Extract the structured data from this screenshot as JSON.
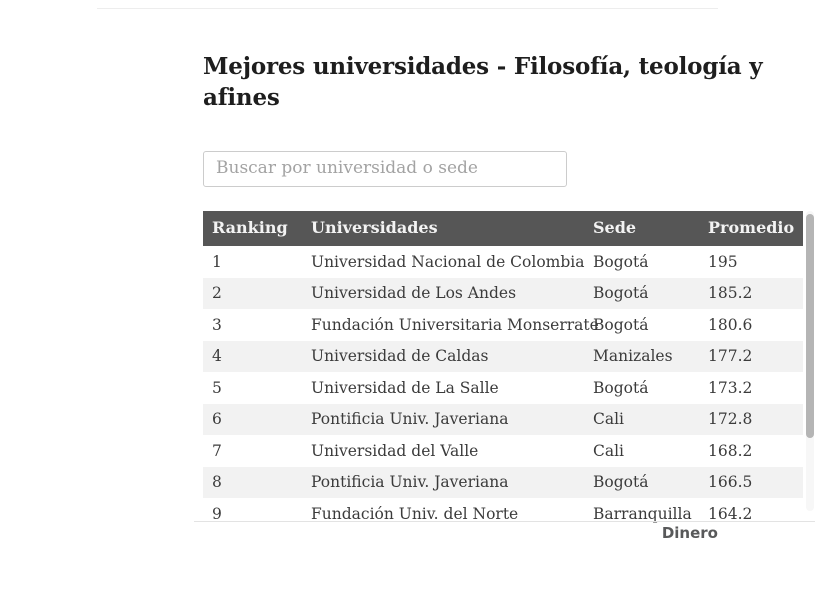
{
  "page": {
    "title": "Mejores universidades - Filosofía, teología y afines",
    "source_label": "Dinero"
  },
  "search": {
    "placeholder": "Buscar por universidad o sede"
  },
  "table": {
    "columns": [
      "Ranking",
      "Universidades",
      "Sede",
      "Promedio"
    ],
    "rows": [
      {
        "ranking": "1",
        "universidad": "Universidad Nacional de Colombia",
        "sede": "Bogotá",
        "promedio": "195"
      },
      {
        "ranking": "2",
        "universidad": "Universidad de Los Andes",
        "sede": "Bogotá",
        "promedio": "185.2"
      },
      {
        "ranking": "3",
        "universidad": "Fundación Universitaria Monserrate",
        "sede": "Bogotá",
        "promedio": "180.6"
      },
      {
        "ranking": "4",
        "universidad": "Universidad de Caldas",
        "sede": "Manizales",
        "promedio": "177.2"
      },
      {
        "ranking": "5",
        "universidad": "Universidad de La Salle",
        "sede": "Bogotá",
        "promedio": "173.2"
      },
      {
        "ranking": "6",
        "universidad": "Pontificia Univ. Javeriana",
        "sede": "Cali",
        "promedio": "172.8"
      },
      {
        "ranking": "7",
        "universidad": "Universidad del Valle",
        "sede": "Cali",
        "promedio": "168.2"
      },
      {
        "ranking": "8",
        "universidad": "Pontificia Univ. Javeriana",
        "sede": "Bogotá",
        "promedio": "166.5"
      },
      {
        "ranking": "9",
        "universidad": "Fundación Univ. del Norte",
        "sede": "Barranquilla",
        "promedio": "164.2"
      }
    ]
  },
  "colors": {
    "header_bg": "#565656",
    "header_text": "#f3f3f3",
    "row_stripe": "#f2f2f2",
    "body_text": "#3b3b3b",
    "title_text": "#1e1e1e",
    "border": "#cccccc",
    "divider": "#e3e3e3",
    "scrollbar_thumb": "#b5b5b5",
    "scrollbar_track": "#f7f7f7",
    "footer_text": "#58595a",
    "placeholder": "#a3a3a3"
  }
}
